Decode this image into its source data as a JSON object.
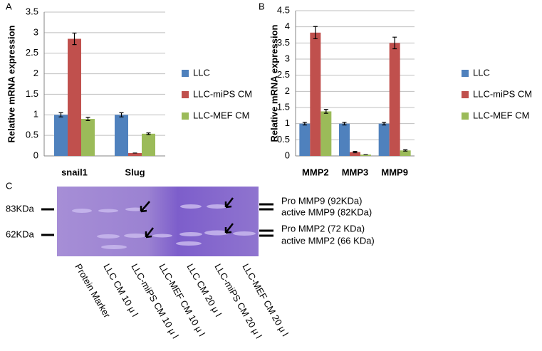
{
  "chart_data": [
    {
      "type": "bar",
      "panel": "A",
      "y_label": "Relative mRNA expression",
      "categories": [
        "snail1",
        "Slug"
      ],
      "series": [
        {
          "name": "LLC",
          "color": "#4f81bd",
          "values": [
            1.0,
            1.0
          ],
          "errors": [
            0.05,
            0.05
          ]
        },
        {
          "name": "LLC-miPS CM",
          "color": "#c0504d",
          "values": [
            2.85,
            0.07
          ],
          "errors": [
            0.14,
            0
          ]
        },
        {
          "name": "LLC-MEF CM",
          "color": "#9bbb59",
          "values": [
            0.9,
            0.54
          ],
          "errors": [
            0.04,
            0.02
          ]
        }
      ],
      "ylim": [
        0,
        3.5
      ],
      "yticks": [
        0,
        0.5,
        1,
        1.5,
        2,
        2.5,
        3,
        3.5
      ],
      "grid": true,
      "legend": "right"
    },
    {
      "type": "bar",
      "panel": "B",
      "y_label": "Relative mRNA expression",
      "categories": [
        "MMP2",
        "MMP3",
        "MMP9"
      ],
      "series": [
        {
          "name": "LLC",
          "color": "#4f81bd",
          "values": [
            1.0,
            1.0,
            1.0
          ],
          "errors": [
            0.04,
            0.04,
            0.04
          ]
        },
        {
          "name": "LLC-miPS CM",
          "color": "#c0504d",
          "values": [
            3.82,
            0.12,
            3.5
          ],
          "errors": [
            0.19,
            0.02,
            0.18
          ]
        },
        {
          "name": "LLC-MEF CM",
          "color": "#9bbb59",
          "values": [
            1.38,
            0.04,
            0.17
          ],
          "errors": [
            0.06,
            0,
            0.02
          ]
        }
      ],
      "ylim": [
        0,
        4.5
      ],
      "yticks": [
        0,
        0.5,
        1,
        1.5,
        2,
        2.5,
        3,
        3.5,
        4,
        4.5
      ],
      "grid": true,
      "legend": "right"
    }
  ],
  "gel": {
    "panel": "C",
    "markers": [
      "83KDa",
      "62KDa"
    ],
    "bands": [
      "Pro MMP9 (92KDa)",
      "active MMP9 (82KDa)",
      "Pro MMP2 (72 KDa)",
      "active MMP2 (66 KDa)"
    ],
    "lanes": [
      "Protein Marker",
      "LLC CM 10 μ l",
      "LLC-miPS CM 10 μ l",
      "LLC-MEF CM 10 μ l",
      "LLC CM 20 μ l",
      "LLC-miPS CM 20 μ l",
      "LLC-MEF CM 20 μ l"
    ]
  }
}
